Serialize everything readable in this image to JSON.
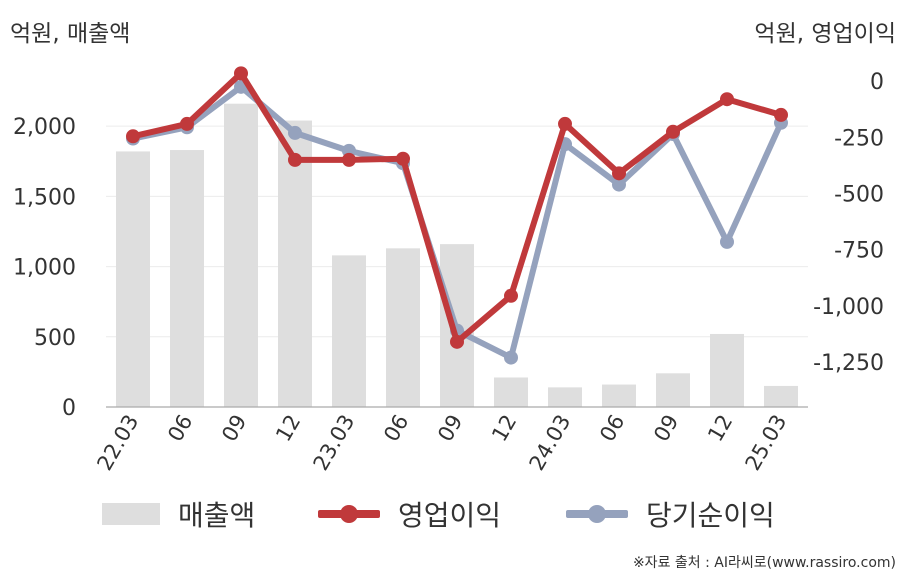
{
  "chart_data": {
    "type": "bar+line",
    "categories": [
      "22.03",
      "06",
      "09",
      "12",
      "23.03",
      "06",
      "09",
      "12",
      "24.03",
      "06",
      "09",
      "12",
      "25.03"
    ],
    "left_axis": {
      "unit_label": "억원, 매출액",
      "ylim": [
        0,
        2400
      ],
      "ticks": [
        0,
        500,
        1000,
        1500,
        2000
      ],
      "tick_labels": [
        "0",
        "500",
        "1,000",
        "1,500",
        "2,000"
      ]
    },
    "right_axis": {
      "unit_label": "억원, 영업이익",
      "ylim": [
        -1450,
        50
      ],
      "ticks": [
        0,
        -250,
        -500,
        -750,
        -1000,
        -1250
      ],
      "tick_labels": [
        "0",
        "-250",
        "-500",
        "-750",
        "-1,000",
        "-1,250"
      ]
    },
    "series": [
      {
        "name": "매출액",
        "type": "bar",
        "axis": "left",
        "color": "#dedede",
        "values": [
          1820,
          1830,
          2160,
          2040,
          1080,
          1130,
          1160,
          210,
          140,
          160,
          240,
          520,
          150
        ]
      },
      {
        "name": "영업이익",
        "type": "line",
        "axis": "right",
        "color": "#c0393b",
        "values": [
          -245,
          -190,
          35,
          -350,
          -350,
          -345,
          -1160,
          -955,
          -190,
          -410,
          -225,
          -80,
          -150
        ]
      },
      {
        "name": "당기순이익",
        "type": "line",
        "axis": "right",
        "color": "#95a2bd",
        "values": [
          -255,
          -205,
          -25,
          -230,
          -310,
          -365,
          -1110,
          -1230,
          -280,
          -460,
          -235,
          -715,
          -185
        ]
      }
    ],
    "gridlines": true,
    "legend": "bottom"
  },
  "source_text": "※자료 출처 : AI라씨로(www.rassiro.com)"
}
